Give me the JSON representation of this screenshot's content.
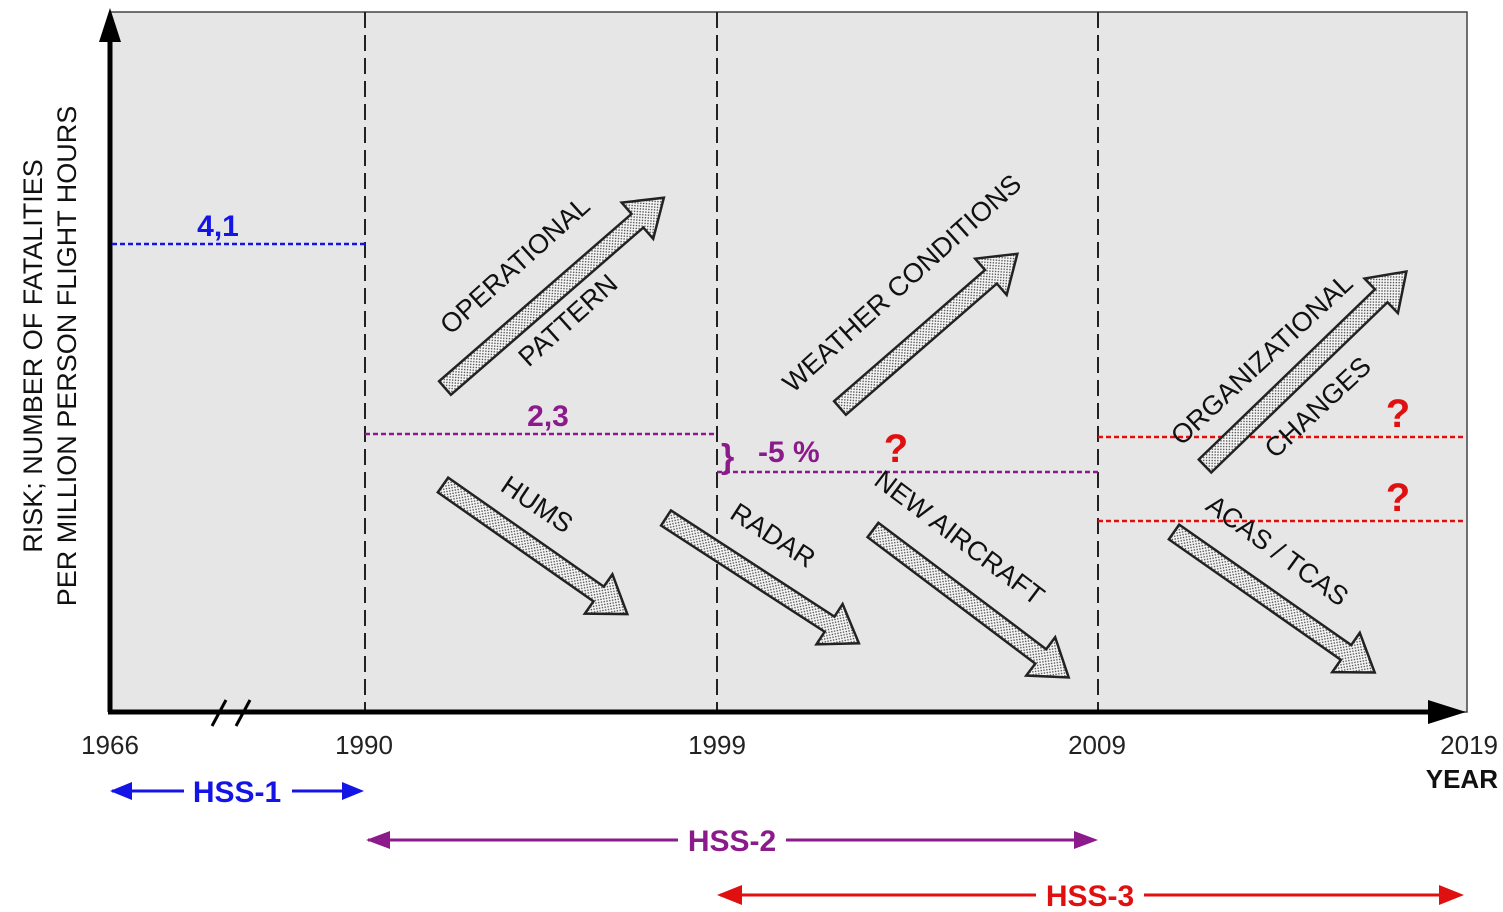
{
  "axes": {
    "y_label_line1": "RISK; NUMBER OF  FATALITIES",
    "y_label_line2": "PER MILLION PERSON FLIGHT HOURS",
    "x_label": "YEAR",
    "x_ticks": [
      "1966",
      "1990",
      "1999",
      "2009",
      "2019"
    ]
  },
  "risk_levels": [
    {
      "period": "1966-1990",
      "value_label": "4,1",
      "color": "#1414e6"
    },
    {
      "period": "1990-1999",
      "value_label": "2,3",
      "color": "#8b1a8b"
    },
    {
      "period": "1999-2009",
      "value_label": "-5 %",
      "brace": "}",
      "marker": "?",
      "color": "#8b1a8b",
      "marker_color": "#e01010"
    },
    {
      "period": "2009-2019 upper",
      "marker": "?",
      "color": "#e01010"
    },
    {
      "period": "2009-2019 lower",
      "marker": "?",
      "color": "#e01010"
    }
  ],
  "factors": {
    "increasing": [
      {
        "line1": "OPERATIONAL",
        "line2": "PATTERN"
      },
      {
        "line1": "WEATHER CONDITIONS"
      },
      {
        "line1": "ORGANIZATIONAL",
        "line2": "CHANGES"
      }
    ],
    "decreasing": [
      {
        "line1": "HUMS"
      },
      {
        "line1": "RADAR"
      },
      {
        "line1": "NEW AIRCRAFT"
      },
      {
        "line1": "ACAS / TCAS"
      }
    ]
  },
  "studies": [
    {
      "label": "HSS-1",
      "color": "#1414e6"
    },
    {
      "label": "HSS-2",
      "color": "#8b1a8b"
    },
    {
      "label": "HSS-3",
      "color": "#e01010"
    }
  ],
  "colors": {
    "plot_background": "#e6e6e6",
    "axis": "#000000",
    "arrow_fill": "#f4f4f4"
  }
}
